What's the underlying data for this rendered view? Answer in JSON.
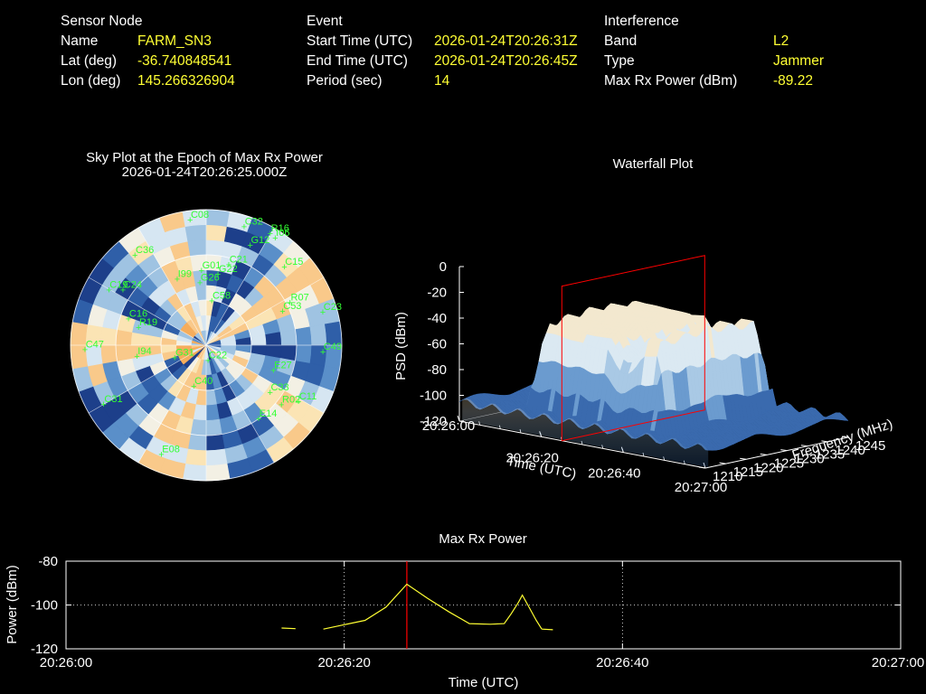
{
  "sensor": {
    "heading": "Sensor Node",
    "name_label": "Name",
    "name": "FARM_SN3",
    "lat_label": "Lat (deg)",
    "lat": "-36.740848541",
    "lon_label": "Lon (deg)",
    "lon": "145.266326904"
  },
  "event": {
    "heading": "Event",
    "start_label": "Start Time (UTC)",
    "start": "2026-01-24T20:26:31Z",
    "end_label": "End Time (UTC)",
    "end": "2026-01-24T20:26:45Z",
    "period_label": "Period (sec)",
    "period": "14"
  },
  "interference": {
    "heading": "Interference",
    "band_label": "Band",
    "band": "L2",
    "type_label": "Type",
    "type": "Jammer",
    "maxp_label": "Max Rx Power (dBm)",
    "maxp": "-89.22"
  },
  "colors": {
    "label": "#ffffff",
    "value": "#ffff33",
    "trace": "#ffff33",
    "marker": "#ff0000",
    "satellite": "#33ff33"
  },
  "chart_data": [
    {
      "type": "heatmap",
      "title": "Sky Plot at the Epoch of Max Rx Power",
      "subtitle": "2026-01-24T20:26:25.000Z",
      "satellites": [
        {
          "id": "C08",
          "az": 353,
          "el": 6
        },
        {
          "id": "C32",
          "az": 18,
          "el": 7
        },
        {
          "id": "R16",
          "az": 30,
          "el": 4
        },
        {
          "id": "I06",
          "az": 33,
          "el": 5
        },
        {
          "id": "G12",
          "az": 24,
          "el": 17
        },
        {
          "id": "C15",
          "az": 45,
          "el": 16
        },
        {
          "id": "C21",
          "az": 16,
          "el": 34
        },
        {
          "id": "G22",
          "az": 10,
          "el": 42
        },
        {
          "id": "G01",
          "az": 357,
          "el": 40
        },
        {
          "id": "I99",
          "az": 337,
          "el": 42
        },
        {
          "id": "G26",
          "az": 355,
          "el": 48
        },
        {
          "id": "C58",
          "az": 8,
          "el": 60
        },
        {
          "id": "R07",
          "az": 63,
          "el": 27
        },
        {
          "id": "C23",
          "az": 74,
          "el": 9
        },
        {
          "id": "C53",
          "az": 66,
          "el": 34
        },
        {
          "id": "C49",
          "az": 93,
          "el": 12
        },
        {
          "id": "E27",
          "az": 110,
          "el": 42
        },
        {
          "id": "C33",
          "az": 126,
          "el": 37
        },
        {
          "id": "R02",
          "az": 128,
          "el": 26
        },
        {
          "id": "C11",
          "az": 121,
          "el": 18
        },
        {
          "id": "E14",
          "az": 144,
          "el": 30
        },
        {
          "id": "E08",
          "az": 202,
          "el": 12
        },
        {
          "id": "C47",
          "az": 268,
          "el": 10
        },
        {
          "id": "C31",
          "az": 240,
          "el": 12
        },
        {
          "id": "C40",
          "az": 196,
          "el": 62
        },
        {
          "id": "C22",
          "az": 170,
          "el": 80
        },
        {
          "id": "G31",
          "az": 248,
          "el": 68
        },
        {
          "id": "I94",
          "az": 261,
          "el": 44
        },
        {
          "id": "R19",
          "az": 285,
          "el": 44
        },
        {
          "id": "C16",
          "az": 289,
          "el": 36
        },
        {
          "id": "C36",
          "az": 322,
          "el": 14
        },
        {
          "id": "C19",
          "az": 300,
          "el": 16
        },
        {
          "id": "C24",
          "az": 304,
          "el": 24
        }
      ]
    },
    {
      "type": "area",
      "title": "Waterfall Plot",
      "xlabel": "Time (UTC)",
      "ylabel": "Frequency (MHz)",
      "zlabel": "PSD (dBm)",
      "time_ticks": [
        "20:26:00",
        "20:26:20",
        "20:26:40",
        "20:27:00"
      ],
      "freq_ticks": [
        1210,
        1215,
        1220,
        1225,
        1230,
        1235,
        1240,
        1245
      ],
      "psd_ticks": [
        0,
        -20,
        -40,
        -60,
        -80,
        -100,
        -120
      ],
      "zlim": [
        -120,
        0
      ],
      "marker_time": "20:26:25"
    },
    {
      "type": "line",
      "title": "Max Rx Power",
      "xlabel": "Time (UTC)",
      "ylabel": "Power (dBm)",
      "x_ticks": [
        "20:26:00",
        "20:26:20",
        "20:26:40",
        "20:27:00"
      ],
      "y_ticks": [
        -80,
        -100,
        -120
      ],
      "xlim": [
        0,
        60
      ],
      "ylim": [
        -120,
        -80
      ],
      "marker_x": 24.5,
      "segments": [
        [
          [
            15.5,
            -110.5
          ],
          [
            16.5,
            -110.8
          ]
        ],
        [
          [
            18.5,
            -111
          ],
          [
            20,
            -109
          ],
          [
            21.5,
            -107
          ],
          [
            23,
            -101
          ],
          [
            24.5,
            -90.5
          ],
          [
            26,
            -97
          ],
          [
            27.5,
            -103
          ],
          [
            29,
            -108.5
          ],
          [
            30.5,
            -108.8
          ],
          [
            31.5,
            -108.5
          ],
          [
            32,
            -104
          ],
          [
            32.5,
            -99
          ],
          [
            32.8,
            -95.5
          ],
          [
            33.2,
            -100
          ],
          [
            33.8,
            -107
          ],
          [
            34.2,
            -111
          ]
        ],
        [
          [
            34.2,
            -111
          ],
          [
            35,
            -111.3
          ]
        ]
      ]
    }
  ]
}
